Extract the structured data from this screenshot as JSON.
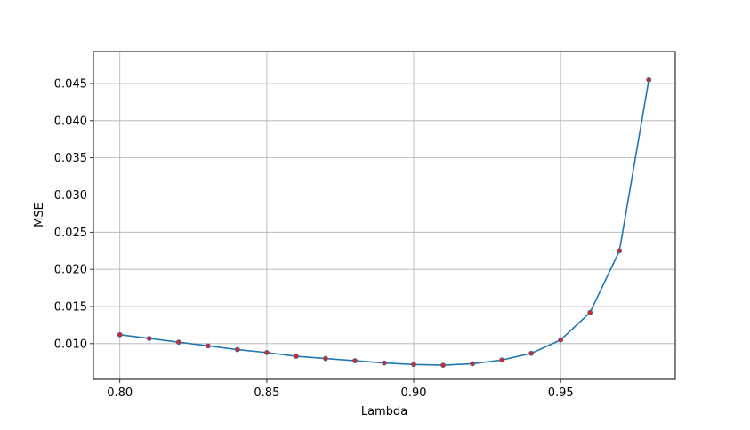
{
  "chart_data": {
    "type": "line",
    "title": "",
    "xlabel": "Lambda",
    "ylabel": "MSE",
    "xlim": [
      0.791,
      0.989
    ],
    "ylim": [
      0.0052,
      0.0493
    ],
    "grid": true,
    "x_ticks": [
      0.8,
      0.85,
      0.9,
      0.95
    ],
    "x_tick_labels": [
      "0.80",
      "0.85",
      "0.90",
      "0.95"
    ],
    "y_ticks": [
      0.01,
      0.015,
      0.02,
      0.025,
      0.03,
      0.035,
      0.04,
      0.045
    ],
    "y_tick_labels": [
      "0.010",
      "0.015",
      "0.020",
      "0.025",
      "0.030",
      "0.035",
      "0.040",
      "0.045"
    ],
    "x": [
      0.8,
      0.81,
      0.82,
      0.83,
      0.84,
      0.85,
      0.86,
      0.87,
      0.88,
      0.89,
      0.9,
      0.91,
      0.92,
      0.93,
      0.94,
      0.95,
      0.96,
      0.97,
      0.98
    ],
    "series": [
      {
        "values": [
          0.0112,
          0.0107,
          0.0102,
          0.0097,
          0.0092,
          0.0088,
          0.0083,
          0.008,
          0.0077,
          0.0074,
          0.0072,
          0.0071,
          0.0073,
          0.0078,
          0.0087,
          0.0105,
          0.0142,
          0.0225,
          0.0455
        ],
        "line_color": "#1f77b4",
        "marker_color": "#d62728"
      }
    ]
  }
}
